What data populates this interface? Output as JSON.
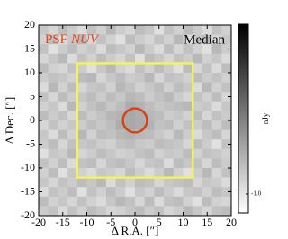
{
  "chart_data": {
    "type": "heatmap",
    "xlabel": "Δ R.A. [″]",
    "ylabel": "Δ Dec. [″]",
    "xlim": [
      -20,
      20
    ],
    "ylim": [
      -20,
      20
    ],
    "xticks": [
      -20,
      -15,
      -10,
      -5,
      0,
      5,
      10,
      15,
      20
    ],
    "yticks": [
      -20,
      -15,
      -10,
      -5,
      0,
      5,
      10,
      15,
      20
    ],
    "colorbar": {
      "label": "nJy",
      "zlim": [
        -1.5,
        3.5
      ],
      "zticks": [
        {
          "value": -1,
          "label": "-1.0"
        }
      ]
    },
    "annotations": {
      "band": "PSF",
      "filter": "NUV",
      "stat": "Median",
      "band_color": "#e0481c",
      "text_color": "#000000"
    },
    "box": {
      "x": [
        -12,
        12
      ],
      "y": [
        -12,
        12
      ],
      "color": "#f2f25a"
    },
    "circle": {
      "x": 0,
      "y": 0,
      "r": 2.5,
      "color": "#d84315"
    },
    "z": [
      [
        -0.4,
        -0.7,
        -0.2,
        -0.5,
        -0.8,
        -0.3,
        -0.6,
        -0.1,
        -0.5,
        -0.7,
        -0.2,
        -0.4,
        -0.9,
        -0.3,
        -0.6,
        -0.2,
        -0.5,
        -0.8,
        -0.3,
        -0.6
      ],
      [
        -0.6,
        -0.2,
        -0.8,
        -0.4,
        -0.1,
        -0.7,
        -0.3,
        -0.6,
        -0.9,
        -0.2,
        -0.5,
        -0.7,
        -0.3,
        -0.6,
        -0.1,
        -0.8,
        -0.4,
        -0.2,
        -0.7,
        -0.4
      ],
      [
        -0.3,
        -0.9,
        -0.5,
        -0.2,
        -0.6,
        -0.4,
        -0.8,
        -0.2,
        -0.4,
        -0.6,
        -0.1,
        -0.5,
        -0.8,
        -0.2,
        -0.7,
        -0.3,
        -0.6,
        -0.9,
        -0.1,
        -0.5
      ],
      [
        -0.7,
        -0.4,
        -0.1,
        -0.8,
        -0.3,
        -0.6,
        -0.2,
        -0.5,
        -0.7,
        -0.3,
        -0.9,
        -0.2,
        -0.4,
        -0.7,
        -0.3,
        -0.5,
        -0.1,
        -0.6,
        -0.4,
        -0.8
      ],
      [
        -0.2,
        -0.6,
        -0.7,
        -0.3,
        -0.5,
        -0.9,
        -0.4,
        -0.1,
        -0.6,
        -0.8,
        -0.3,
        -0.6,
        -0.2,
        -0.5,
        -0.9,
        -0.2,
        -0.7,
        -0.3,
        -0.8,
        -0.2
      ],
      [
        -0.5,
        -0.3,
        -0.4,
        -0.6,
        -0.2,
        -0.1,
        -0.7,
        -0.4,
        -0.2,
        -0.5,
        -0.4,
        -0.1,
        -0.7,
        -0.3,
        -0.4,
        -0.6,
        -0.2,
        -0.5,
        -0.3,
        -0.6
      ],
      [
        -0.8,
        -0.1,
        -0.6,
        -0.2,
        -0.7,
        -0.4,
        -0.3,
        -0.6,
        -0.1,
        -0.3,
        -0.6,
        -0.4,
        -0.2,
        -0.6,
        -0.2,
        -0.4,
        -0.8,
        -0.1,
        -0.6,
        -0.3
      ],
      [
        -0.3,
        -0.7,
        -0.2,
        -0.5,
        -0.4,
        -0.2,
        -0.5,
        -0.2,
        -0.4,
        -0.1,
        -0.2,
        -0.5,
        -0.3,
        -0.1,
        -0.5,
        -0.7,
        -0.3,
        -0.6,
        -0.2,
        -0.7
      ],
      [
        -0.6,
        -0.4,
        -0.8,
        -0.1,
        -0.6,
        -0.3,
        -0.1,
        -0.4,
        -0.2,
        0.1,
        0.0,
        -0.2,
        -0.4,
        -0.3,
        -0.2,
        -0.1,
        -0.5,
        -0.4,
        -0.8,
        -0.4
      ],
      [
        -0.2,
        -0.5,
        -0.3,
        -0.7,
        -0.2,
        -0.5,
        -0.3,
        -0.1,
        0.0,
        0.2,
        0.1,
        -0.1,
        -0.2,
        -0.5,
        -0.4,
        -0.6,
        -0.2,
        -0.7,
        -0.3,
        -0.5
      ],
      [
        -0.7,
        -0.3,
        -0.6,
        -0.4,
        -0.5,
        -0.2,
        -0.4,
        -0.2,
        0.1,
        0.2,
        0.1,
        0.0,
        -0.3,
        -0.2,
        -0.6,
        -0.3,
        -0.5,
        -0.2,
        -0.6,
        -0.2
      ],
      [
        -0.4,
        -0.8,
        -0.2,
        -0.6,
        -0.1,
        -0.6,
        -0.2,
        -0.3,
        -0.1,
        0.0,
        -0.1,
        -0.2,
        -0.4,
        -0.6,
        -0.1,
        -0.5,
        -0.8,
        -0.4,
        -0.2,
        -0.7
      ],
      [
        -0.5,
        -0.2,
        -0.7,
        -0.3,
        -0.4,
        -0.3,
        -0.5,
        -0.6,
        -0.3,
        -0.2,
        -0.4,
        -0.5,
        -0.2,
        -0.3,
        -0.4,
        -0.7,
        -0.2,
        -0.5,
        -0.9,
        -0.3
      ],
      [
        -0.9,
        -0.4,
        -0.5,
        -0.1,
        -0.7,
        -0.5,
        -0.2,
        -0.4,
        -0.6,
        -0.5,
        -0.3,
        -0.2,
        -0.6,
        -0.4,
        -0.5,
        -0.2,
        -0.6,
        -0.3,
        -0.4,
        -0.6
      ],
      [
        -0.3,
        -0.6,
        -0.2,
        -0.8,
        -0.3,
        -0.2,
        -0.7,
        -0.3,
        -0.2,
        -0.4,
        -0.7,
        -0.4,
        -0.3,
        -0.8,
        -0.2,
        -0.4,
        -0.3,
        -0.7,
        -0.2,
        -0.5
      ],
      [
        -0.6,
        -0.2,
        -0.9,
        -0.4,
        -0.6,
        -0.8,
        -0.4,
        -0.5,
        -0.7,
        -0.2,
        -0.5,
        -0.8,
        -0.5,
        -0.1,
        -0.6,
        -0.9,
        -0.5,
        -0.1,
        -0.7,
        -0.3
      ],
      [
        -0.4,
        -0.7,
        -0.3,
        -0.5,
        -0.2,
        -0.4,
        -0.1,
        -0.8,
        -0.3,
        -0.6,
        -0.2,
        -0.3,
        -0.7,
        -0.4,
        -0.3,
        -0.2,
        -0.7,
        -0.4,
        -0.5,
        -0.8
      ],
      [
        -0.8,
        -0.3,
        -0.5,
        -0.2,
        -0.9,
        -0.3,
        -0.6,
        -0.2,
        -0.5,
        -0.9,
        -0.4,
        -0.6,
        -0.2,
        -0.5,
        -0.8,
        -0.4,
        -0.3,
        -0.6,
        -0.2,
        -0.4
      ],
      [
        -0.2,
        -0.6,
        -0.4,
        -0.7,
        -0.3,
        -0.6,
        -0.8,
        -0.4,
        -0.1,
        -0.3,
        -0.7,
        -0.2,
        -0.8,
        -0.3,
        -0.2,
        -0.6,
        -0.9,
        -0.2,
        -0.6,
        -0.7
      ],
      [
        -0.5,
        -0.3,
        -0.8,
        -0.3,
        -0.6,
        -0.2,
        -0.4,
        -0.7,
        -0.6,
        -0.4,
        -0.2,
        -0.5,
        -0.3,
        -0.7,
        -0.5,
        -0.1,
        -0.4,
        -0.7,
        -0.3,
        -0.2
      ]
    ]
  }
}
